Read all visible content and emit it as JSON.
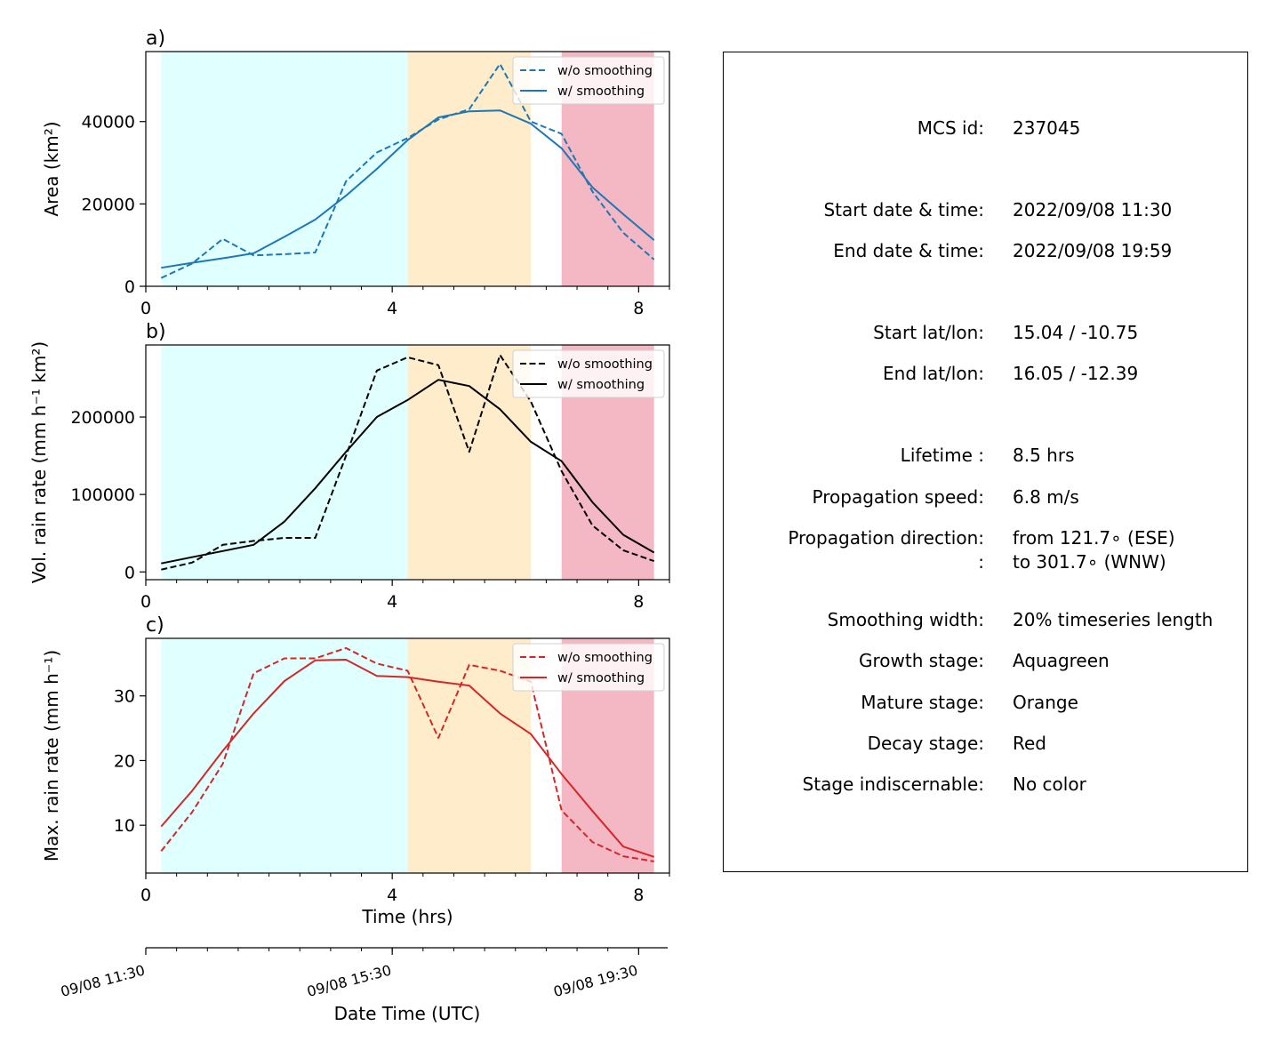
{
  "chart_data": [
    {
      "panel": "a)",
      "type": "line",
      "ylabel": "Area  (km²)",
      "ylim": [
        0,
        57000
      ],
      "yticks": [
        0,
        20000,
        40000
      ],
      "xlim": [
        0,
        8.5
      ],
      "xticks": [
        0,
        4,
        8
      ],
      "stages": [
        {
          "name": "Aquagreen",
          "start": 0.25,
          "end": 4.25,
          "color": "#e0ffff"
        },
        {
          "name": "Orange",
          "start": 4.25,
          "end": 6.25,
          "color": "#ffecca"
        },
        {
          "name": "Red",
          "start": 6.75,
          "end": 8.25,
          "color": "#f4b7c4"
        }
      ],
      "series": [
        {
          "name": "w/o smoothing",
          "style": "dashed",
          "color": "#1f77b4",
          "x": [
            0.25,
            0.75,
            1.25,
            1.75,
            2.25,
            2.75,
            3.25,
            3.75,
            4.25,
            4.75,
            5.25,
            5.75,
            6.25,
            6.75,
            7.25,
            7.75,
            8.25
          ],
          "y": [
            2000,
            5500,
            11500,
            7500,
            7800,
            8200,
            25500,
            32500,
            36000,
            40500,
            43000,
            54000,
            40000,
            37000,
            23000,
            13000,
            6500
          ]
        },
        {
          "name": "w/ smoothing",
          "style": "solid",
          "color": "#1f77b4",
          "x": [
            0.25,
            0.75,
            1.25,
            1.75,
            2.25,
            2.75,
            3.25,
            3.75,
            4.25,
            4.75,
            5.25,
            5.75,
            6.25,
            6.75,
            7.25,
            7.75,
            8.25
          ],
          "y": [
            4500,
            5700,
            6800,
            8000,
            12000,
            16200,
            22000,
            28500,
            35500,
            41000,
            42500,
            42700,
            39500,
            33500,
            24000,
            17500,
            11200
          ]
        }
      ]
    },
    {
      "panel": "b)",
      "type": "line",
      "ylabel": "Vol. rain rate (mm h⁻¹ km²)",
      "ylim": [
        -10000,
        293000
      ],
      "yticks": [
        0,
        100000,
        200000
      ],
      "xlim": [
        0,
        8.5
      ],
      "xticks": [
        0,
        4,
        8
      ],
      "stages": [
        {
          "name": "Aquagreen",
          "start": 0.25,
          "end": 4.25,
          "color": "#e0ffff"
        },
        {
          "name": "Orange",
          "start": 4.25,
          "end": 6.25,
          "color": "#ffecca"
        },
        {
          "name": "Red",
          "start": 6.75,
          "end": 8.25,
          "color": "#f4b7c4"
        }
      ],
      "series": [
        {
          "name": "w/o smoothing",
          "style": "dashed",
          "color": "#000000",
          "x": [
            0.25,
            0.75,
            1.25,
            1.75,
            2.25,
            2.75,
            3.25,
            3.75,
            4.25,
            4.75,
            5.25,
            5.75,
            6.25,
            6.75,
            7.25,
            7.75,
            8.25
          ],
          "y": [
            3000,
            12000,
            35000,
            40000,
            44000,
            44000,
            150000,
            260000,
            277000,
            267000,
            155000,
            280000,
            220000,
            130000,
            60000,
            28000,
            14000
          ]
        },
        {
          "name": "w/ smoothing",
          "style": "solid",
          "color": "#000000",
          "x": [
            0.25,
            0.75,
            1.25,
            1.75,
            2.25,
            2.75,
            3.25,
            3.75,
            4.25,
            4.75,
            5.25,
            5.75,
            6.25,
            6.75,
            7.25,
            7.75,
            8.25
          ],
          "y": [
            11000,
            19000,
            27000,
            35000,
            65000,
            108000,
            155000,
            200000,
            222000,
            248000,
            240000,
            210000,
            168000,
            143000,
            90000,
            48000,
            25000
          ]
        }
      ]
    },
    {
      "panel": "c)",
      "type": "line",
      "ylabel": "Max. rain rate  (mm h⁻¹)",
      "ylim": [
        2.6,
        38.9
      ],
      "yticks": [
        10,
        20,
        30
      ],
      "xlim": [
        0,
        8.5
      ],
      "xticks": [
        0,
        4,
        8
      ],
      "xlabel": "Time (hrs)",
      "stages": [
        {
          "name": "Aquagreen",
          "start": 0.25,
          "end": 4.25,
          "color": "#e0ffff"
        },
        {
          "name": "Orange",
          "start": 4.25,
          "end": 6.25,
          "color": "#ffecca"
        },
        {
          "name": "Red",
          "start": 6.75,
          "end": 8.25,
          "color": "#f4b7c4"
        }
      ],
      "series": [
        {
          "name": "w/o smoothing",
          "style": "dashed",
          "color": "#d62728",
          "x": [
            0.25,
            0.75,
            1.25,
            1.75,
            2.25,
            2.75,
            3.25,
            3.75,
            4.25,
            4.75,
            5.25,
            5.75,
            6.25,
            6.75,
            7.25,
            7.75,
            8.25
          ],
          "y": [
            6,
            12,
            19.5,
            33.5,
            35.8,
            35.8,
            37.4,
            35,
            33.9,
            23.5,
            34.8,
            33.9,
            32.2,
            12.3,
            7.4,
            5.2,
            4.4
          ]
        },
        {
          "name": "w/ smoothing",
          "style": "solid",
          "color": "#d62728",
          "x": [
            0.25,
            0.75,
            1.25,
            1.75,
            2.25,
            2.75,
            3.25,
            3.75,
            4.25,
            4.75,
            5.25,
            5.75,
            6.25,
            6.75,
            7.25,
            7.75,
            8.25
          ],
          "y": [
            9.8,
            15.3,
            21.5,
            27.3,
            32.3,
            35.5,
            35.6,
            33.1,
            32.9,
            32.2,
            31.6,
            27.3,
            24.1,
            17.9,
            12.2,
            6.7,
            5.1
          ]
        }
      ]
    }
  ],
  "datetime_axis": {
    "xlabel": "Date Time (UTC)",
    "ticks": [
      {
        "hr": 0,
        "label": "09/08 11:30"
      },
      {
        "hr": 4.0,
        "label": "09/08 15:30"
      },
      {
        "hr": 8.0,
        "label": "09/08 19:30"
      }
    ]
  },
  "info": {
    "rows": [
      {
        "label": "MCS id:",
        "value": "237045"
      },
      {
        "label": "Start date & time:",
        "value": "2022/09/08 11:30"
      },
      {
        "label": "End date & time:",
        "value": "2022/09/08 19:59"
      },
      {
        "label": "Start lat/lon:",
        "value": "15.04 / -10.75"
      },
      {
        "label": "End lat/lon:",
        "value": "16.05 / -12.39"
      },
      {
        "label": "Lifetime :",
        "value": "8.5 hrs"
      },
      {
        "label": "Propagation speed:",
        "value": "6.8 m/s"
      },
      {
        "label": "Propagation direction:",
        "value": "from 121.7∘ (ESE)"
      },
      {
        "label": ":",
        "value": "to   301.7∘ (WNW)"
      },
      {
        "label": "Smoothing width:",
        "value": "20% timeseries length"
      },
      {
        "label": "Growth stage:",
        "value": "Aquagreen"
      },
      {
        "label": "Mature stage:",
        "value": "Orange"
      },
      {
        "label": "Decay stage:",
        "value": "Red"
      },
      {
        "label": "Stage indiscernable:",
        "value": "No color"
      }
    ]
  }
}
